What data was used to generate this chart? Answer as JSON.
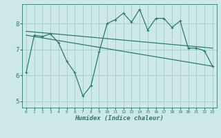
{
  "xlabel": "Humidex (Indice chaleur)",
  "bg_color": "#cce8e8",
  "grid_color": "#aacfcf",
  "line_color": "#2a7a6a",
  "xlim": [
    -0.5,
    23.5
  ],
  "ylim": [
    4.75,
    8.75
  ],
  "xticks": [
    0,
    1,
    2,
    3,
    4,
    5,
    6,
    7,
    8,
    9,
    10,
    11,
    12,
    13,
    14,
    15,
    16,
    17,
    18,
    19,
    20,
    21,
    22,
    23
  ],
  "yticks": [
    5,
    6,
    7,
    8
  ],
  "line1_x": [
    0,
    1,
    2,
    3,
    4,
    5,
    6,
    7,
    8,
    9,
    10,
    11,
    12,
    13,
    14,
    15,
    16,
    17,
    18,
    19,
    20,
    21,
    22,
    23
  ],
  "line1_y": [
    6.1,
    7.55,
    7.5,
    7.6,
    7.25,
    6.55,
    6.1,
    5.2,
    5.6,
    6.9,
    8.0,
    8.15,
    8.4,
    8.05,
    8.55,
    7.75,
    8.2,
    8.2,
    7.85,
    8.1,
    7.05,
    7.05,
    6.95,
    6.35
  ],
  "line2_x": [
    0,
    23
  ],
  "line2_y": [
    7.7,
    7.05
  ],
  "line3_x": [
    0,
    23
  ],
  "line3_y": [
    7.55,
    6.35
  ],
  "marker_size": 2.5,
  "linewidth": 0.9
}
